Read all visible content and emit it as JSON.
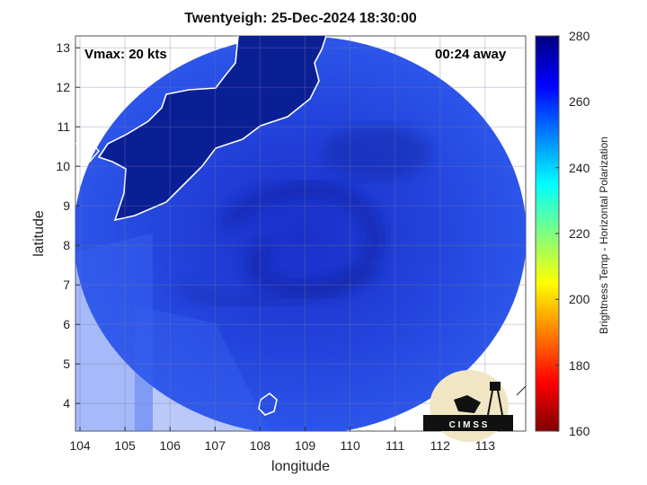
{
  "title": "Twentyeigh: 25-Dec-2024 18:30:00",
  "vmax_label": "Vmax: 20 kts",
  "time_label": "00:24 away",
  "logo_text": "C I M S S",
  "map": {
    "xlabel": "longitude",
    "ylabel": "latitude",
    "xlim": [
      103.9,
      113.9
    ],
    "ylim": [
      3.3,
      13.3
    ],
    "xticks": [
      "104",
      "105",
      "106",
      "107",
      "108",
      "109",
      "110",
      "111",
      "112",
      "113"
    ],
    "yticks": [
      "4",
      "5",
      "6",
      "7",
      "8",
      "9",
      "10",
      "11",
      "12",
      "13"
    ],
    "grid": true
  },
  "colorbar": {
    "label": "Brightness Temp - Horizontal Polarization",
    "range": [
      160,
      280
    ],
    "ticks": [
      "160",
      "180",
      "200",
      "220",
      "240",
      "260",
      "280"
    ],
    "colormap": "jet"
  },
  "colors": {
    "ocean_blue": "#2a4ee8",
    "land_navy": "#0b1f95",
    "coastline": "#ffffff"
  }
}
